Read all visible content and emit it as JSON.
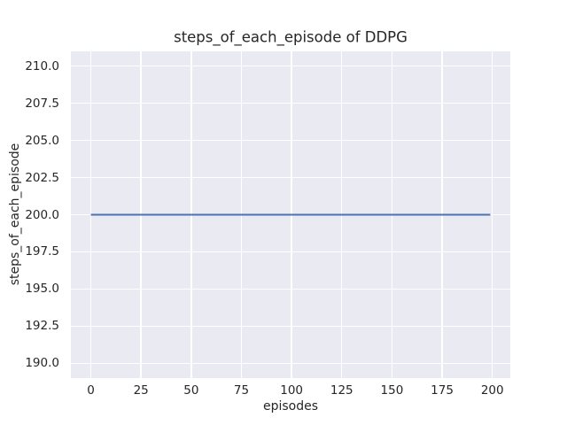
{
  "figure": {
    "background": "#ffffff",
    "plot_background": "#eaeaf2",
    "grid_color": "#ffffff",
    "text_color": "#262626"
  },
  "chart_data": {
    "type": "line",
    "title": "steps_of_each_episode of DDPG",
    "xlabel": "episodes",
    "ylabel": "steps_of_each_episode",
    "grid": true,
    "legend": "none",
    "xlim": [
      -9.95,
      208.95
    ],
    "ylim": [
      189,
      211
    ],
    "x_ticks": [
      "0",
      "25",
      "50",
      "75",
      "100",
      "125",
      "150",
      "175",
      "200"
    ],
    "y_ticks": [
      "190.0",
      "192.5",
      "195.0",
      "197.5",
      "200.0",
      "202.5",
      "205.0",
      "207.5",
      "210.0"
    ],
    "series": [
      {
        "name": "steps_of_each_episode",
        "color": "#4c72b0",
        "line_width": 2,
        "x": [
          0,
          199
        ],
        "y": [
          200,
          200
        ]
      }
    ]
  }
}
